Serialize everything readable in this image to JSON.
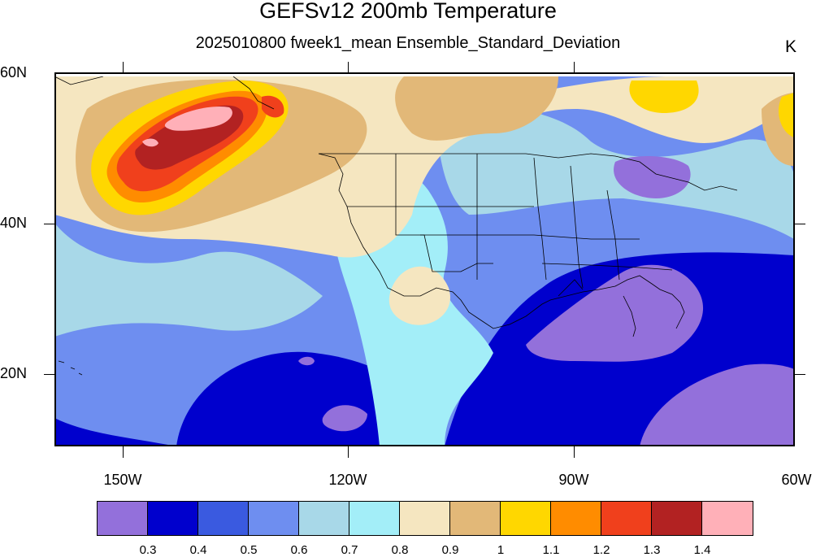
{
  "title": "GEFSv12 200mb Temperature",
  "subtitle": "2025010800 fweek1_mean Ensemble_Standard_Deviation",
  "units": "K",
  "lat_labels": [
    "60N",
    "40N",
    "20N"
  ],
  "lon_labels": [
    "150W",
    "120W",
    "90W",
    "60W"
  ],
  "colorbar": {
    "levels": [
      "0.3",
      "0.4",
      "0.5",
      "0.6",
      "0.7",
      "0.8",
      "0.9",
      "1",
      "1.1",
      "1.2",
      "1.3",
      "1.4"
    ],
    "colors": [
      "#9370db",
      "#0000cd",
      "#3a5ae0",
      "#6e8ef0",
      "#a8d8e8",
      "#a3eef8",
      "#f5e6c0",
      "#e2b878",
      "#ffd700",
      "#ff8c00",
      "#f0401c",
      "#b22222",
      "#ffb0b8"
    ]
  }
}
